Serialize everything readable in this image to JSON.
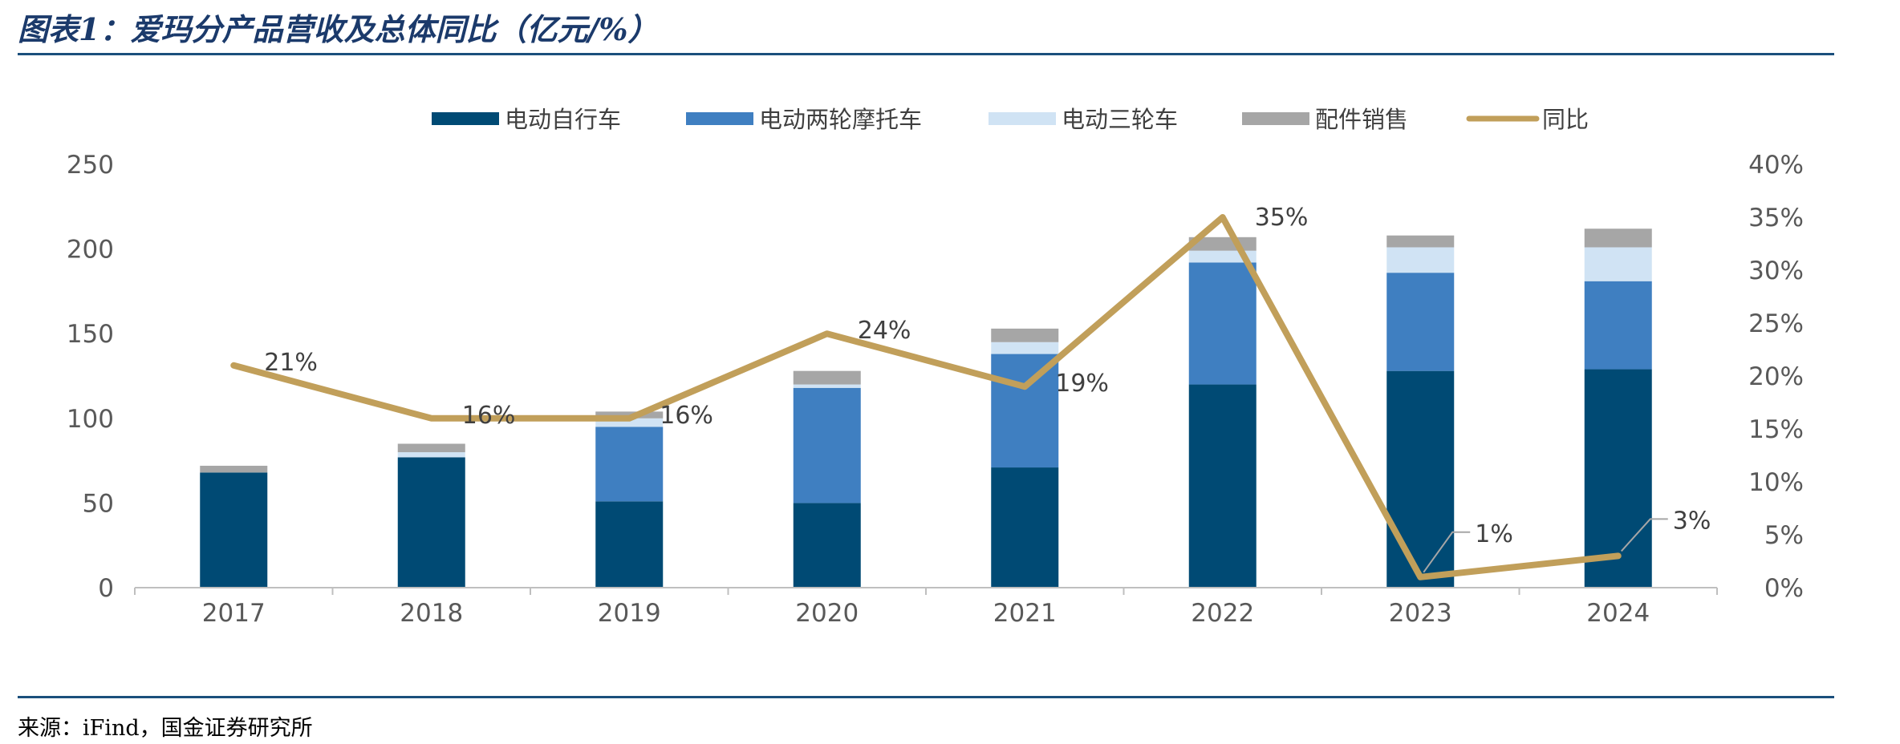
{
  "header": {
    "title": "图表1：爱玛分产品营收及总体同比（亿元/%）"
  },
  "footer": {
    "source": "来源：iFind，国金证券研究所"
  },
  "chart_data": {
    "type": "bar",
    "stacked": true,
    "title": "",
    "xlabel": "",
    "ylabel": "",
    "categories": [
      "2017",
      "2018",
      "2019",
      "2020",
      "2021",
      "2022",
      "2023",
      "2024"
    ],
    "ylim": [
      0,
      250
    ],
    "y_ticks": [
      "0",
      "50",
      "100",
      "150",
      "200",
      "250"
    ],
    "y2lim": [
      0,
      40
    ],
    "y2_ticks": [
      "0%",
      "5%",
      "10%",
      "15%",
      "20%",
      "25%",
      "30%",
      "35%",
      "40%"
    ],
    "grid": false,
    "legend_position": "top",
    "series": [
      {
        "name": "电动自行车",
        "type": "bar",
        "color": "#004a74",
        "values": [
          68,
          77,
          51,
          50,
          71,
          120,
          128,
          129
        ]
      },
      {
        "name": "电动两轮摩托车",
        "type": "bar",
        "color": "#3f7fc1",
        "values": [
          0,
          0,
          44,
          68,
          67,
          72,
          58,
          52
        ]
      },
      {
        "name": "电动三轮车",
        "type": "bar",
        "color": "#d0e3f4",
        "values": [
          0,
          3,
          5,
          2,
          7,
          7,
          15,
          20
        ]
      },
      {
        "name": "配件销售",
        "type": "bar",
        "color": "#a6a6a6",
        "values": [
          4,
          5,
          4,
          8,
          8,
          8,
          7,
          11
        ]
      },
      {
        "name": "同比",
        "type": "line",
        "axis": "right",
        "color": "#c19f5a",
        "values": [
          21,
          16,
          16,
          24,
          19,
          35,
          1,
          3
        ]
      }
    ],
    "data_labels": [
      "21%",
      "16%",
      "16%",
      "24%",
      "19%",
      "35%",
      "1%",
      "3%"
    ]
  }
}
